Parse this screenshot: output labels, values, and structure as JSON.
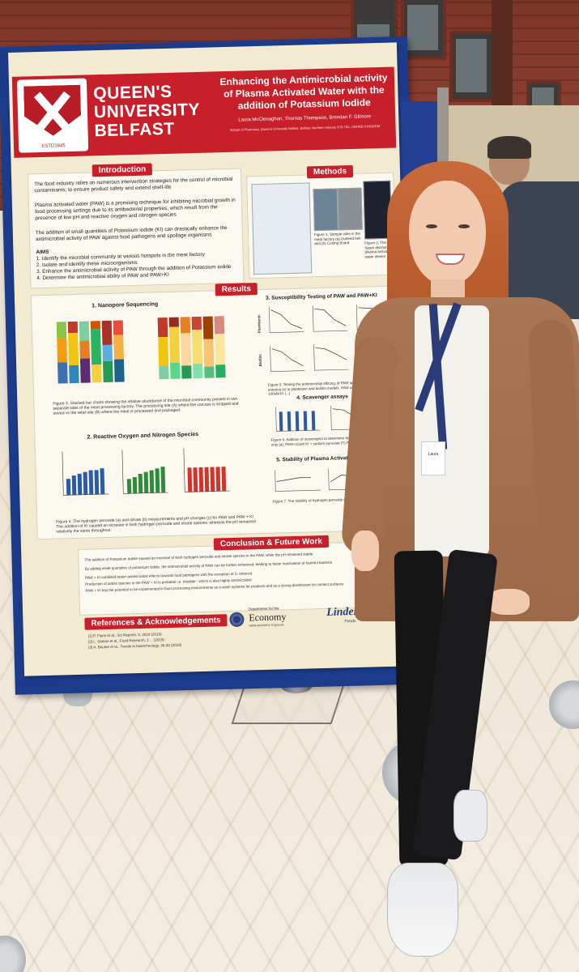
{
  "poster": {
    "university": [
      "QUEEN'S",
      "UNIVERSITY",
      "BELFAST"
    ],
    "crest_year": "ESTD1845",
    "title": "Enhancing the Antimicrobial activity of Plasma Activated Water with the addition of Potassium Iodide",
    "authors": "Laura McClenaghan, Thomas Thompson, Brendan F. Gilmore",
    "affiliation": "School of Pharmacy, Queen's University Belfast, Belfast, Northern Ireland, BT9 7BL, UNITED KINGDOM",
    "sections": {
      "introduction": "Introduction",
      "methods": "Methods",
      "results": "Results",
      "conclusion": "Conclusion & Future Work",
      "references": "References & Acknowledgements"
    },
    "intro": {
      "p1": "The food industry relies on numerous intervention strategies for the control of microbial contaminants; to ensure product safety and extend shelf-life",
      "p2": "Plasma activated water (PAW) is a promising technique for inhibiting microbial growth in food processing settings due to its antibacterial properties, which result from the presence of low pH and reactive oxygen and nitrogen species",
      "p3": "The addition of small quantities of Potassium iodide (KI) can drastically enhance the antimicrobial activity of PAW against food pathogens and spoilage organisms",
      "aims_heading": "AIMS",
      "aims": [
        "1. Identify the microbial community at various hotspots in the meat factory",
        "2. Isolate and identify these microorganisms",
        "3. Enhance the antimicrobial activity of PAW through the addition of Potassium iodide",
        "4. Determine the antimicrobial ability of PAW and PAW+KI"
      ]
    },
    "methods": {
      "fig1": "Figure 1. Sample sites in the meat factory (a) Outfeed belt and (b) Cutting Board",
      "fig2": "Figure 2. The Spark discharge plasma activated water device"
    },
    "results": {
      "s1": "1. Nanopore Sequencing",
      "s2": "2. Reactive Oxygen and Nitrogen Species",
      "s3": "3. Susceptibility Testing of PAW and PAW+KI",
      "s4": "4. Scavenger assays",
      "s5": "5. Stability of Plasma Activated",
      "fig3": "Figure 3. Stacked bar charts showing the relative abundance of the microbial community present in two separate sites of the meat processing factory. The processing site (A) where the carcass is stripped and stored vs the retail site (B) where the meat is processed and packaged.",
      "fig4": "Figure 4. The hydrogen peroxide (a) and nitrate (b) measurements and pH changes (c) for PAW and PAW + KI. The addition of KI caused an increase in both hydrogen peroxide and nitrate species, whereas the pH remained relatively the same throughout.",
      "fig5": "Figure 5. Testing the antimicrobial efficacy of PAW against E. coli (a) ... and S. enterica (c) in planktonic and biofilm models. PAW only (a), PAW + ... PAW + 100uM KI (...)",
      "fig6": "Figure 6. Addition of scavengers to determine the RONS responsible ... PAW only (a), PAW+10uM KI + sodium pyruvate (T) PAW+10uM KI (...)",
      "fig7": "Figure 7. The stability of hydrogen peroxide (a), nitrate (b) and ...",
      "planktonic": "Planktonic",
      "biofilm": "Biofilm"
    },
    "conclusion": [
      "The addition of Potassium Iodide caused an increase of both hydrogen peroxide and nitrate species in the PAW, while the pH remained stable",
      "By adding small quantities of potassium iodide, the antimicrobial activity of PAW can be further enhanced, leading to faster inactivation of harmful bacteria",
      "PAW + KI exhibited better antimicrobial effects towards food pathogens with the exception of S. enterica",
      "Production of iodine species in the PAW + KI is probable i.e. triiodide - which is also highly antimicrobial",
      "PAW + KI has the potential to be implemented in food processing environments as a wash systems for products and as a strong disinfectant for contact surfaces"
    ],
    "references": [
      "[1] P. Flynn et al., Sci Reports, 9, 2019 (2019)",
      "[2] L. Santos et al., Food Research, 2 ... (2019)",
      "[3] A. Bourke et al., Trends in biotechnology, 36 (6) (2018)"
    ],
    "logos": {
      "dept_small": "Department for the",
      "economy": "Economy",
      "economy_url": "www.economy-ni.gov.uk",
      "linden": "Linden",
      "linden_sub": "Foods"
    }
  },
  "lanyard_text": "Laura"
}
